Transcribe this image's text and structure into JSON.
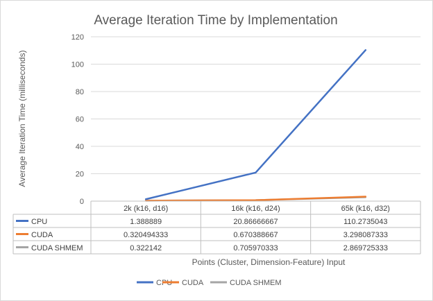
{
  "chart_data": {
    "type": "line",
    "title": "Average Iteration Time by Implementation",
    "xlabel": "Points (Cluster, Dimension-Feature) Input",
    "ylabel": "Average Iteration Time (milliseconds)",
    "ylim": [
      0,
      120
    ],
    "yticks": [
      "0",
      "20",
      "40",
      "60",
      "80",
      "100",
      "120"
    ],
    "grid": true,
    "legend_position": "bottom",
    "categories": [
      "2k (k16, d16)",
      "16k (k16, d24)",
      "65k (k16, d32)"
    ],
    "series": [
      {
        "name": "CPU",
        "color": "#4472c4",
        "values": [
          1.388889,
          20.86666667,
          110.2735043
        ],
        "labels": [
          "1.388889",
          "20.86666667",
          "110.2735043"
        ]
      },
      {
        "name": "CUDA",
        "color": "#ed7d31",
        "values": [
          0.320494333,
          0.670388667,
          3.298087333
        ],
        "labels": [
          "0.320494333",
          "0.670388667",
          "3.298087333"
        ]
      },
      {
        "name": "CUDA SHMEM",
        "color": "#a5a5a5",
        "values": [
          0.322142,
          0.705970333,
          2.869725333
        ],
        "labels": [
          "0.322142",
          "0.705970333",
          "2.869725333"
        ]
      }
    ]
  }
}
